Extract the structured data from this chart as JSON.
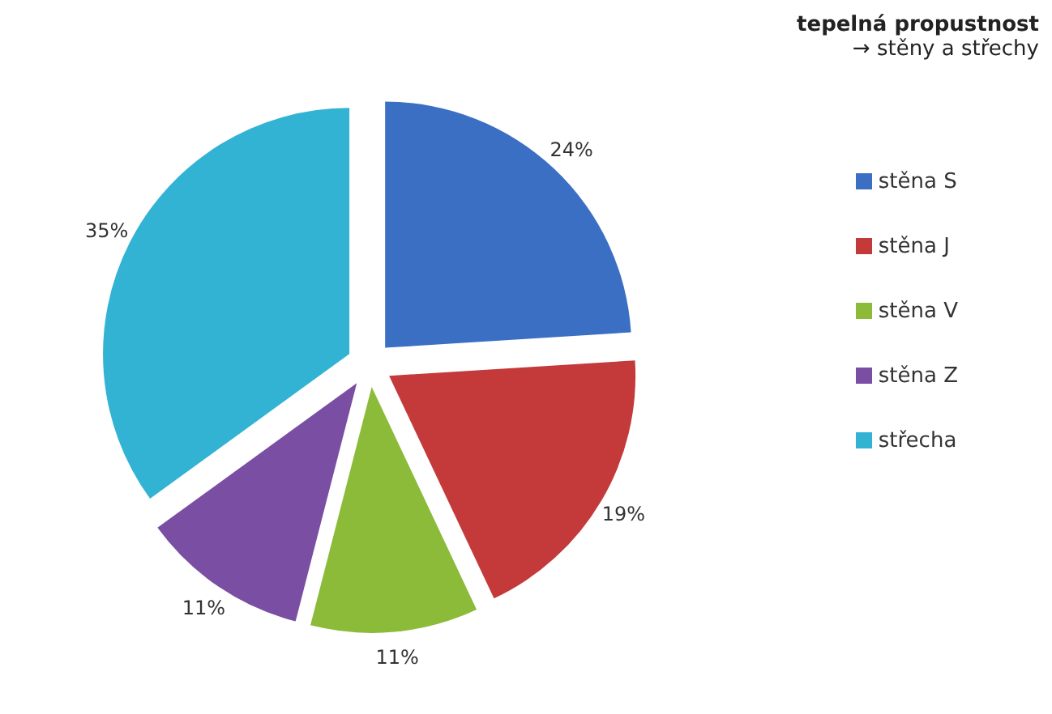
{
  "chart_data": {
    "type": "pie",
    "title": "tepelná propustnost",
    "subtitle": "→ stěny a střechy",
    "categories": [
      "stěna S",
      "stěna J",
      "stěna V",
      "stěna Z",
      "střecha"
    ],
    "values": [
      24,
      19,
      11,
      11,
      35
    ],
    "colors": [
      "#3b6fc4",
      "#c43a3a",
      "#8cbb3a",
      "#7a4ea3",
      "#33b3d3"
    ],
    "value_labels": [
      "24%",
      "19%",
      "11%",
      "11%",
      "35%"
    ],
    "legend": "right"
  }
}
